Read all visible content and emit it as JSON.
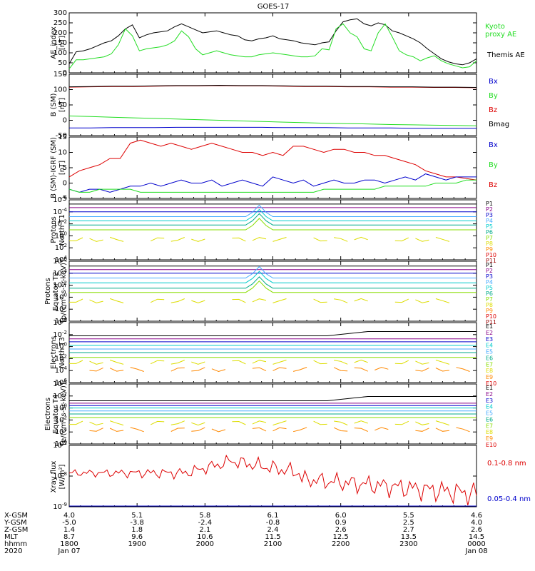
{
  "title": "GOES-17",
  "colors": {
    "black": "#000000",
    "green": "#22dd22",
    "red": "#dd0000",
    "darkred": "#990000",
    "blue": "#0000cc",
    "navy": "#000088",
    "cyan": "#00cccc",
    "teal": "#00aa88",
    "lime": "#88dd00",
    "yellow": "#dddd00",
    "orange": "#ff8800",
    "purple": "#880088",
    "lightblue": "#44aaff"
  },
  "chart_data": [
    {
      "type": "line",
      "panel": "ae",
      "ylabel": "AE_index [nT]",
      "ylim": [
        0,
        300
      ],
      "yticks": [
        "0",
        "50",
        "100",
        "150",
        "200",
        "250",
        "300"
      ],
      "legend": [
        {
          "name": "Kyoto proxy AE",
          "color": "#22dd22"
        },
        {
          "name": "Themis AE",
          "color": "#000000"
        }
      ],
      "series": [
        {
          "name": "Themis AE",
          "color": "#000000",
          "values": [
            45,
            105,
            110,
            120,
            135,
            150,
            160,
            185,
            220,
            240,
            175,
            190,
            200,
            205,
            210,
            230,
            245,
            230,
            215,
            200,
            205,
            210,
            200,
            190,
            185,
            165,
            160,
            170,
            175,
            185,
            170,
            165,
            160,
            150,
            145,
            140,
            150,
            155,
            210,
            255,
            265,
            270,
            245,
            235,
            250,
            240,
            210,
            200,
            185,
            170,
            150,
            120,
            95,
            70,
            55,
            45,
            40,
            50,
            70
          ]
        },
        {
          "name": "Kyoto proxy AE",
          "color": "#22dd22",
          "values": [
            20,
            65,
            65,
            70,
            75,
            80,
            95,
            140,
            220,
            185,
            110,
            120,
            125,
            130,
            140,
            160,
            210,
            180,
            120,
            90,
            100,
            110,
            100,
            90,
            85,
            80,
            80,
            90,
            95,
            100,
            95,
            90,
            85,
            80,
            80,
            85,
            120,
            115,
            220,
            245,
            200,
            180,
            120,
            110,
            200,
            245,
            180,
            110,
            90,
            80,
            60,
            75,
            85,
            60,
            45,
            35,
            25,
            30,
            60
          ]
        }
      ]
    },
    {
      "type": "line",
      "panel": "b",
      "ylabel": "B (SM) [nT]",
      "ylim": [
        -50,
        150
      ],
      "yticks": [
        "-50",
        "0",
        "50",
        "100",
        "150"
      ],
      "legend": [
        {
          "name": "Bx",
          "color": "#0000cc"
        },
        {
          "name": "By",
          "color": "#22dd22"
        },
        {
          "name": "Bz",
          "color": "#dd0000"
        },
        {
          "name": "Bmag",
          "color": "#000000"
        }
      ],
      "series": [
        {
          "name": "Bz",
          "color": "#dd0000",
          "values": [
            108,
            109,
            110,
            110,
            111,
            112,
            112,
            113,
            112,
            112,
            111,
            110,
            110,
            109,
            109,
            108,
            108,
            107,
            107,
            106
          ]
        },
        {
          "name": "Bmag",
          "color": "#000000",
          "values": [
            109,
            110,
            111,
            111,
            112,
            113,
            113,
            114,
            113,
            113,
            112,
            111,
            111,
            110,
            110,
            109,
            109,
            108,
            108,
            107
          ]
        },
        {
          "name": "By",
          "color": "#22dd22",
          "values": [
            14,
            12,
            10,
            8,
            6,
            4,
            2,
            0,
            -2,
            -4,
            -6,
            -8,
            -10,
            -11,
            -12,
            -14,
            -15,
            -16,
            -17,
            -18
          ]
        },
        {
          "name": "Bx",
          "color": "#0000cc",
          "values": [
            -25,
            -25,
            -24,
            -24,
            -24,
            -23,
            -23,
            -23,
            -23,
            -23,
            -24,
            -24,
            -24,
            -25,
            -25,
            -25,
            -26,
            -26,
            -26,
            -26
          ]
        }
      ]
    },
    {
      "type": "line",
      "panel": "db",
      "ylabel": "B (SM)-IGRF (SM) [nT]",
      "ylim": [
        -5,
        15
      ],
      "yticks": [
        "-5",
        "0",
        "5",
        "10",
        "15"
      ],
      "legend": [
        {
          "name": "Bx",
          "color": "#0000cc"
        },
        {
          "name": "By",
          "color": "#22dd22"
        },
        {
          "name": "Bz",
          "color": "#dd0000"
        }
      ],
      "series": [
        {
          "name": "Bz",
          "color": "#dd0000",
          "values": [
            2,
            4,
            5,
            6,
            8,
            8,
            13,
            14,
            13,
            12,
            13,
            12,
            11,
            12,
            13,
            12,
            11,
            10,
            10,
            9,
            10,
            9,
            12,
            12,
            11,
            10,
            11,
            11,
            10,
            10,
            9,
            9,
            8,
            7,
            6,
            4,
            3,
            2,
            2,
            1.5,
            1
          ]
        },
        {
          "name": "Bx",
          "color": "#0000cc",
          "values": [
            -2,
            -3,
            -2,
            -2,
            -3,
            -2,
            -1,
            -1,
            0,
            -1,
            0,
            1,
            0,
            0,
            1,
            -1,
            0,
            1,
            0,
            -1,
            2,
            1,
            0,
            1,
            -1,
            0,
            1,
            0,
            0,
            1,
            1,
            0,
            1,
            2,
            1,
            3,
            2,
            1,
            2,
            2,
            2
          ]
        },
        {
          "name": "By",
          "color": "#22dd22",
          "values": [
            -2,
            -3,
            -3,
            -2,
            -2,
            -2,
            -2,
            -3,
            -3,
            -3,
            -3,
            -3,
            -3,
            -3,
            -3,
            -3,
            -3,
            -3,
            -3,
            -3,
            -3,
            -3,
            -3,
            -3,
            -3,
            -2,
            -2,
            -2,
            -2,
            -2,
            -2,
            -1,
            -1,
            -1,
            -1,
            -1,
            0,
            0,
            0,
            1,
            1
          ]
        }
      ]
    },
    {
      "type": "line",
      "panel": "prot1",
      "ylabel": "Protons North T1",
      "yticks": [
        "10^4",
        "10^2",
        "10^0",
        "10^-2",
        "10^-4",
        "10^-6"
      ],
      "legend": [
        "P1",
        "P2",
        "P3",
        "P4",
        "P5",
        "P6",
        "P7",
        "P8",
        "P9",
        "P10",
        "P11"
      ]
    },
    {
      "type": "line",
      "panel": "prot2",
      "ylabel": "Protons Equator T2 [p/(cm^2-s-sr-keV)]",
      "yticks": [
        "10^4",
        "10^2",
        "10^0",
        "10^-2",
        "10^-4",
        "10^-6"
      ],
      "legend": [
        "P1",
        "P2",
        "P3",
        "P4",
        "P5",
        "P6",
        "P7",
        "P8",
        "P9",
        "P10",
        "P11"
      ]
    },
    {
      "type": "line",
      "panel": "elec1",
      "ylabel": "Electrons North T3",
      "yticks": [
        "10^6",
        "10^4",
        "10^2",
        "10^0",
        "10^-2",
        "10^-4"
      ],
      "legend": [
        "E1",
        "E2",
        "E3",
        "E4",
        "E5",
        "E6",
        "E7",
        "E8",
        "E9",
        "E10"
      ]
    },
    {
      "type": "line",
      "panel": "elec2",
      "ylabel": "Electrons Equator T4 [e/(cm^2-s-sr-keV)]",
      "yticks": [
        "10^6",
        "10^4",
        "10^2",
        "10^0",
        "10^-2",
        "10^-4"
      ],
      "legend": [
        "E1",
        "E2",
        "E3",
        "E4",
        "E5",
        "E6",
        "E7",
        "E8",
        "E9",
        "E10"
      ]
    },
    {
      "type": "line",
      "panel": "xray",
      "ylabel": "Xray flux [W/m^2]",
      "yticks": [
        "10^-7",
        "10^-8",
        "10^-9"
      ],
      "legend": [
        {
          "name": "0.1-0.8 nm",
          "color": "#dd0000"
        },
        {
          "name": "0.05-0.4 nm",
          "color": "#0000cc"
        }
      ]
    }
  ],
  "xaxis": {
    "rows": [
      {
        "label": "X-GSM",
        "values": [
          "4.0",
          "5.1",
          "5.8",
          "6.1",
          "6.0",
          "5.5",
          "4.6"
        ]
      },
      {
        "label": "Y-GSM",
        "values": [
          "-5.0",
          "-3.8",
          "-2.4",
          "-0.8",
          "0.9",
          "2.5",
          "4.0"
        ]
      },
      {
        "label": "Z-GSM",
        "values": [
          "1.4",
          "1.8",
          "2.1",
          "2.4",
          "2.6",
          "2.7",
          "2.6"
        ]
      },
      {
        "label": "MLT",
        "values": [
          "8.7",
          "9.6",
          "10.6",
          "11.5",
          "12.5",
          "13.5",
          "14.5"
        ]
      },
      {
        "label": "hhmm",
        "values": [
          "1800",
          "1900",
          "2000",
          "2100",
          "2200",
          "2300",
          "0000"
        ]
      },
      {
        "label": "2020",
        "values": [
          "Jan 07",
          "",
          "",
          "",
          "",
          "",
          "Jan 08"
        ]
      }
    ]
  }
}
